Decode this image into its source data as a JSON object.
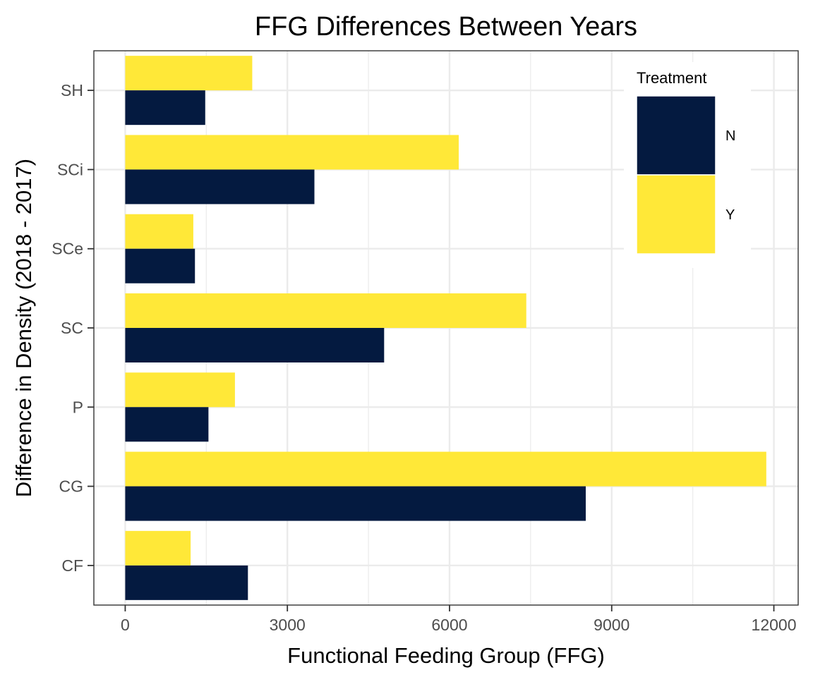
{
  "chart_data": {
    "type": "bar",
    "orientation": "horizontal",
    "title": "FFG Differences Between Years",
    "xlabel": "Functional Feeding Group (FFG)",
    "ylabel": "Difference in Density (2018 - 2017)",
    "categories": [
      "CF",
      "CG",
      "P",
      "SC",
      "SCe",
      "SCi",
      "SH"
    ],
    "series": [
      {
        "name": "N",
        "color": "#041a40",
        "values": [
          2270,
          8520,
          1540,
          4790,
          1290,
          3500,
          1480
        ]
      },
      {
        "name": "Y",
        "color": "#ffe838",
        "values": [
          1210,
          11860,
          2030,
          7420,
          1260,
          6170,
          2350
        ]
      }
    ],
    "xlim": [
      -580,
      12450
    ],
    "xticks": [
      0,
      3000,
      6000,
      9000,
      12000
    ],
    "xtick_labels": [
      "0",
      "3000",
      "6000",
      "9000",
      "12000"
    ],
    "grid": true,
    "legend": {
      "title": "Treatment",
      "placement": "top-right",
      "items": [
        "N",
        "Y"
      ]
    }
  }
}
